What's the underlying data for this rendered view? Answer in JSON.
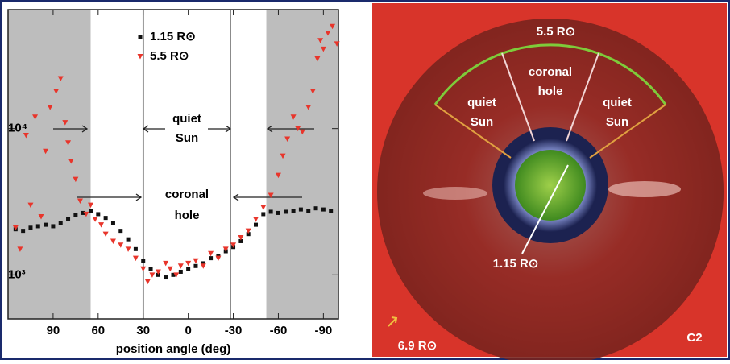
{
  "chart_data": {
    "type": "scatter",
    "xlabel": "position angle (deg)",
    "xlim": [
      120,
      -100
    ],
    "ylim": [
      500,
      65000
    ],
    "log_y": true,
    "xticks": [
      90,
      60,
      30,
      0,
      -30,
      -60,
      -90
    ],
    "yticks": [
      {
        "value": 1000,
        "label": "10³"
      },
      {
        "value": 10000,
        "label": "10⁴"
      }
    ],
    "shaded_ranges": [
      [
        120,
        65
      ],
      [
        -52,
        -100
      ]
    ],
    "vlines": [
      30,
      -28
    ],
    "annotations": [
      {
        "lines": [
          "quiet",
          "Sun"
        ]
      },
      {
        "lines": [
          "coronal",
          "hole"
        ]
      }
    ],
    "series": [
      {
        "name": "1.15 R⊙",
        "color": "#111111",
        "marker": "square",
        "x": [
          115,
          110,
          105,
          100,
          95,
          90,
          85,
          80,
          75,
          70,
          65,
          60,
          55,
          50,
          45,
          40,
          35,
          30,
          25,
          20,
          15,
          10,
          5,
          0,
          -5,
          -10,
          -15,
          -20,
          -25,
          -30,
          -35,
          -40,
          -45,
          -50,
          -55,
          -60,
          -65,
          -70,
          -75,
          -80,
          -85,
          -90,
          -95
        ],
        "values": [
          2050,
          2000,
          2100,
          2150,
          2200,
          2150,
          2250,
          2400,
          2550,
          2650,
          2750,
          2600,
          2450,
          2250,
          2000,
          1750,
          1500,
          1250,
          1100,
          1000,
          960,
          1000,
          1050,
          1100,
          1150,
          1200,
          1300,
          1350,
          1450,
          1550,
          1700,
          1900,
          2200,
          2600,
          2700,
          2650,
          2700,
          2750,
          2800,
          2750,
          2850,
          2800,
          2750
        ]
      },
      {
        "name": "5.5 R⊙",
        "color": "#e8352b",
        "marker": "triangle",
        "x": [
          115,
          112,
          108,
          105,
          102,
          98,
          95,
          92,
          88,
          85,
          82,
          80,
          78,
          75,
          72,
          68,
          65,
          62,
          58,
          55,
          50,
          45,
          40,
          35,
          30,
          27,
          24,
          20,
          15,
          12,
          8,
          5,
          0,
          -5,
          -10,
          -15,
          -20,
          -25,
          -30,
          -35,
          -40,
          -45,
          -50,
          -55,
          -60,
          -63,
          -66,
          -70,
          -73,
          -76,
          -80,
          -83,
          -86,
          -88,
          -90,
          -93,
          -96,
          -99
        ],
        "values": [
          2100,
          1500,
          9000,
          3000,
          12000,
          2500,
          7000,
          14000,
          18000,
          22000,
          11000,
          8000,
          6000,
          4500,
          3200,
          2600,
          3000,
          2400,
          2200,
          1900,
          1700,
          1600,
          1500,
          1300,
          1100,
          900,
          1000,
          1050,
          1200,
          1100,
          1000,
          1150,
          1200,
          1250,
          1150,
          1400,
          1300,
          1500,
          1600,
          1800,
          2000,
          2400,
          2900,
          3500,
          4800,
          6500,
          8500,
          12000,
          10000,
          9500,
          14000,
          18000,
          30000,
          40000,
          35000,
          45000,
          50000,
          38000
        ]
      }
    ]
  },
  "image_panel": {
    "outer_label": "5.5 R⊙",
    "center": {
      "lines": [
        "coronal",
        "hole"
      ]
    },
    "left": {
      "lines": [
        "quiet",
        "Sun"
      ]
    },
    "right": {
      "lines": [
        "quiet",
        "Sun"
      ]
    },
    "inner_label": "1.15 R⊙",
    "edge_label": "6.9 R⊙",
    "instrument": "C2"
  }
}
